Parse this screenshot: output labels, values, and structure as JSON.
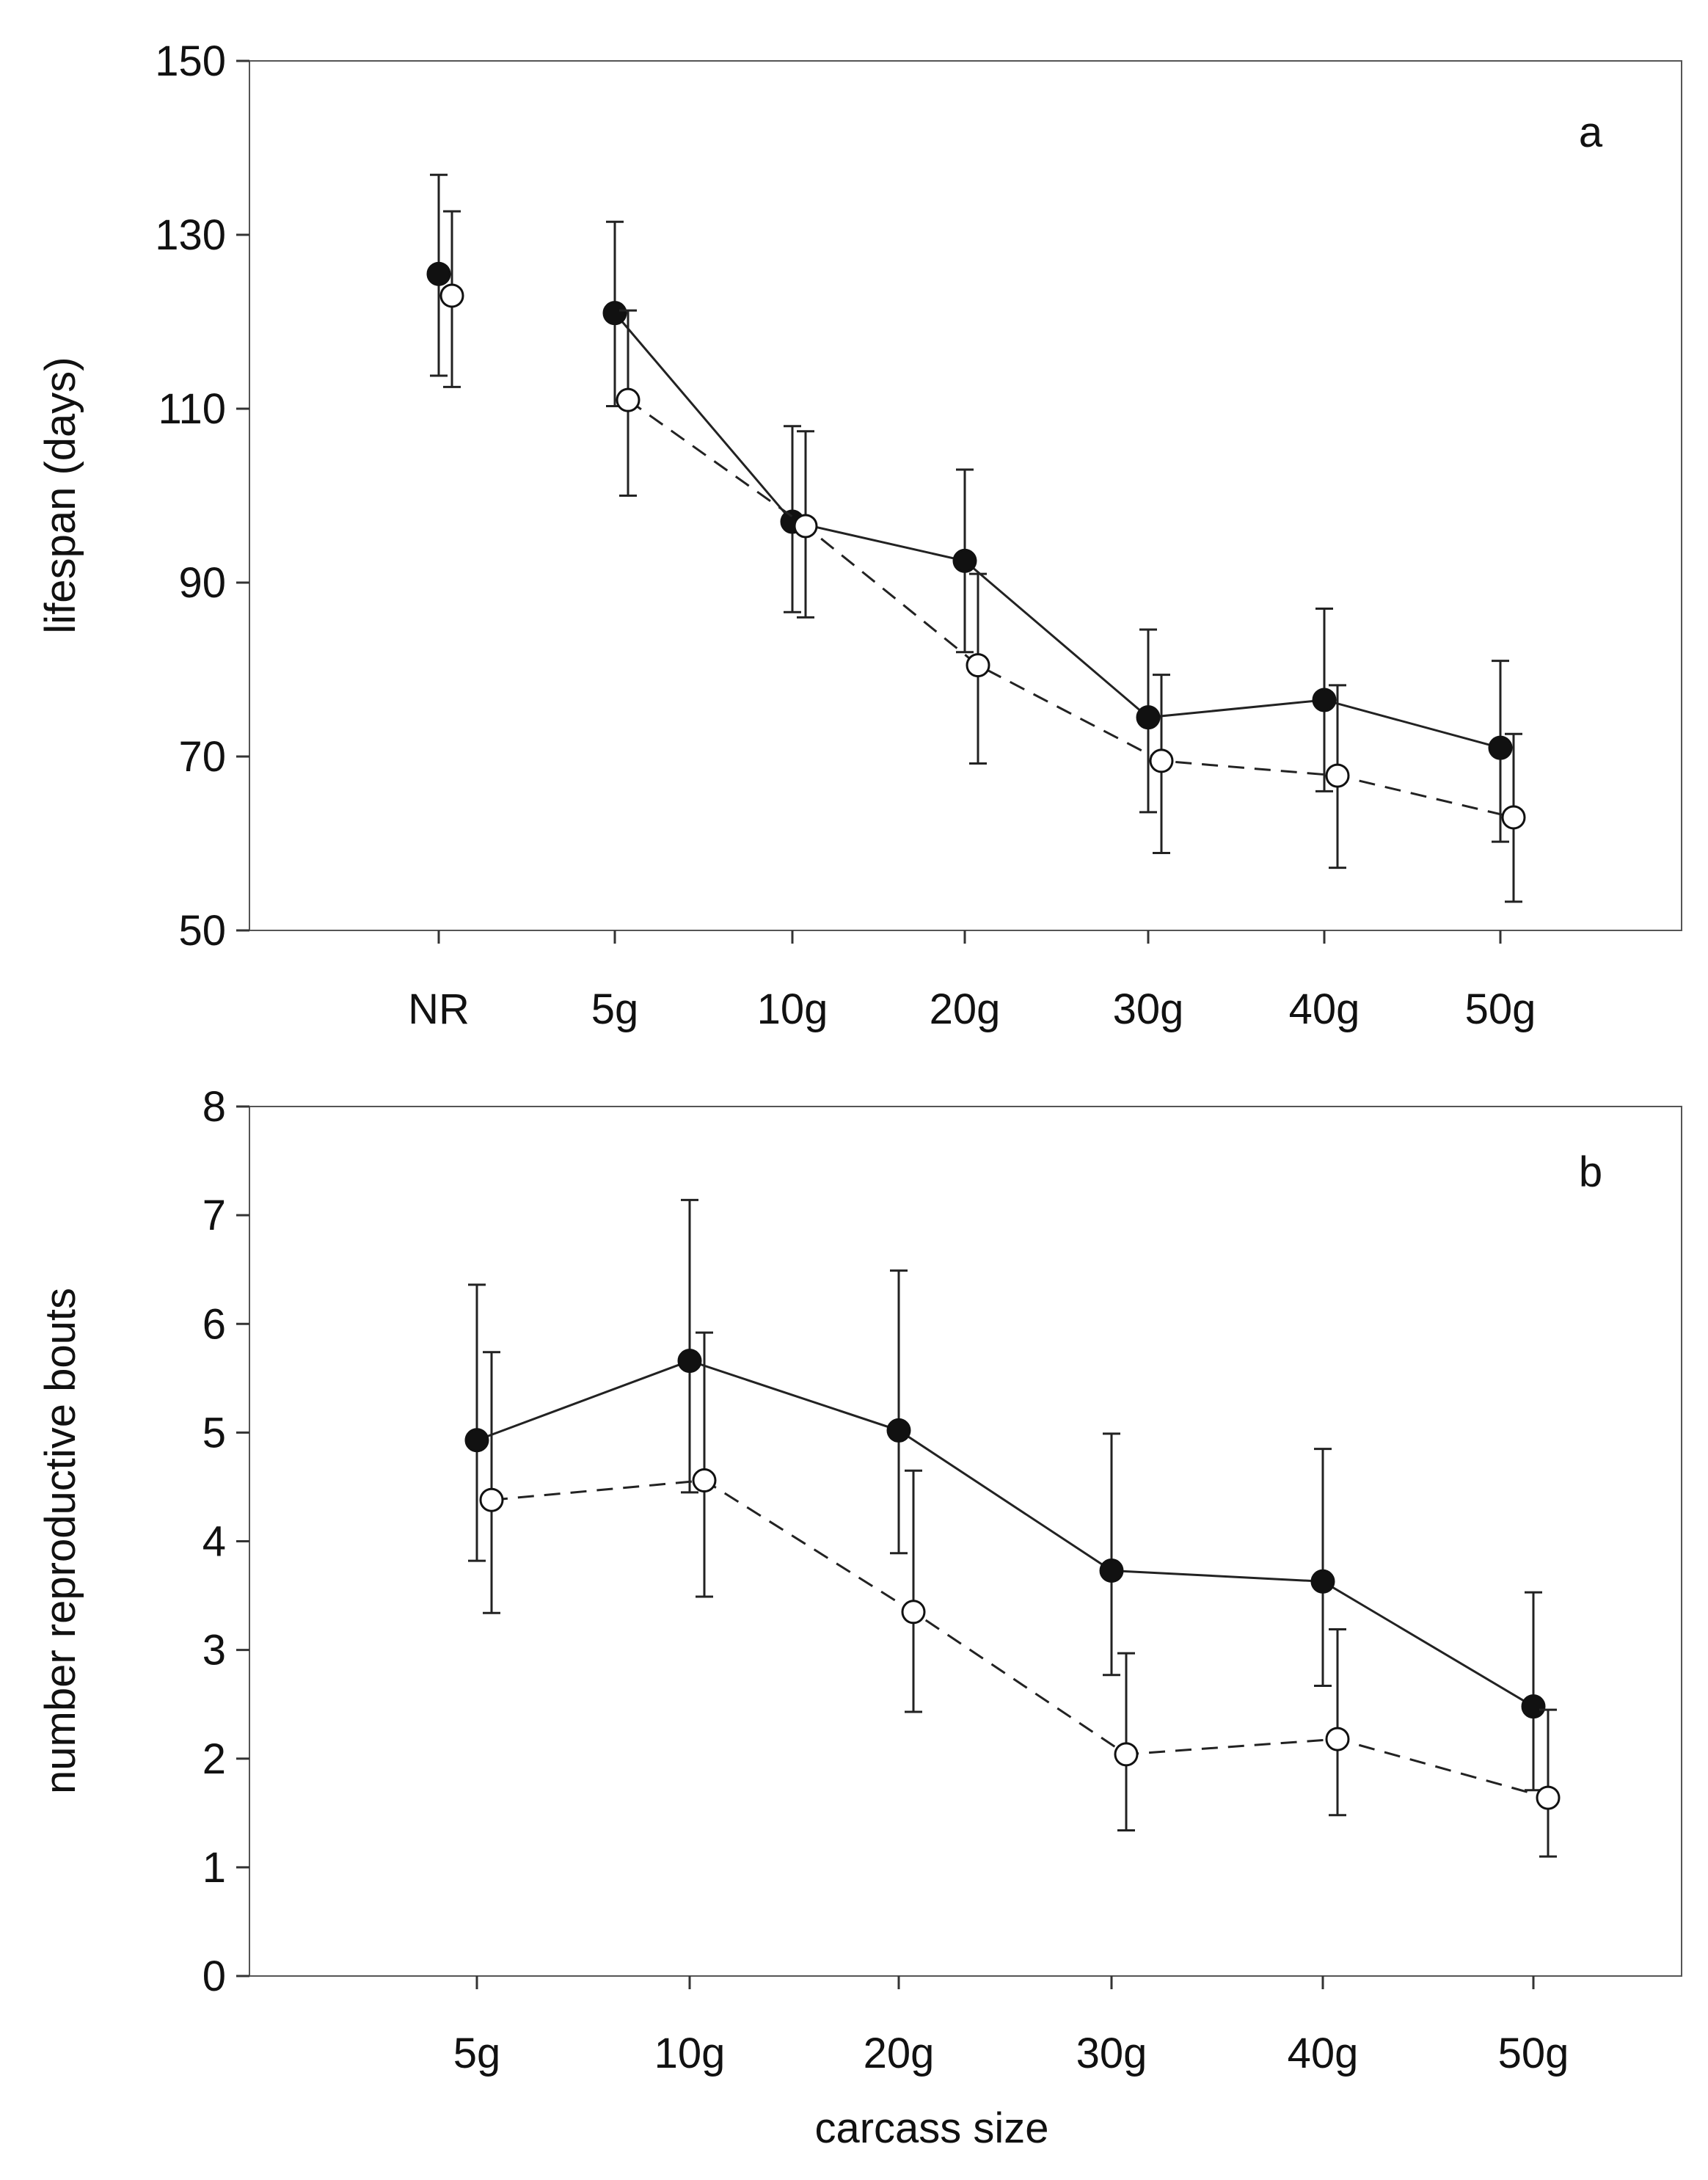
{
  "chart_data": [
    {
      "type": "line",
      "panel_label": "a",
      "xlabel": "",
      "ylabel": "lifespan (days)",
      "categories": [
        "NR",
        "5g",
        "10g",
        "20g",
        "30g",
        "40g",
        "50g"
      ],
      "ylim": [
        50,
        150
      ],
      "yticks": [
        50,
        70,
        90,
        110,
        130,
        150
      ],
      "series": [
        {
          "name": "filled",
          "marker": "filled-circle",
          "line": "solid",
          "values": [
            125.5,
            121,
            97,
            92.5,
            74.5,
            76.5,
            71
          ],
          "err_low": [
            113.8,
            110.3,
            86.6,
            82,
            63.6,
            66,
            60.2
          ],
          "err_high": [
            136.9,
            131.5,
            108,
            103,
            84.6,
            87,
            81
          ],
          "connect_from_index": 1
        },
        {
          "name": "open",
          "marker": "open-circle",
          "line": "dashed",
          "values": [
            123,
            111,
            96.5,
            80.5,
            69.5,
            67.8,
            63
          ],
          "err_low": [
            112.5,
            100,
            86,
            69.2,
            58.9,
            57.2,
            53.3
          ],
          "err_high": [
            132.7,
            121.3,
            107.4,
            91,
            79.4,
            78.2,
            72.6
          ],
          "connect_from_index": 1
        }
      ]
    },
    {
      "type": "line",
      "panel_label": "b",
      "xlabel": "carcass size",
      "ylabel": "number reproductive bouts",
      "categories": [
        "5g",
        "10g",
        "20g",
        "30g",
        "40g",
        "50g"
      ],
      "ylim": [
        0,
        8
      ],
      "yticks": [
        0,
        1,
        2,
        3,
        4,
        5,
        6,
        7,
        8
      ],
      "series": [
        {
          "name": "filled",
          "marker": "filled-circle",
          "line": "solid",
          "values": [
            4.93,
            5.66,
            5.02,
            3.73,
            3.63,
            2.48
          ],
          "err_low": [
            3.82,
            4.45,
            3.89,
            2.77,
            2.67,
            1.71
          ],
          "err_high": [
            6.36,
            7.14,
            6.49,
            4.99,
            4.85,
            3.53
          ],
          "connect_from_index": 0
        },
        {
          "name": "open",
          "marker": "open-circle",
          "line": "dashed",
          "values": [
            4.38,
            4.56,
            3.35,
            2.04,
            2.18,
            1.64
          ],
          "err_low": [
            3.34,
            3.49,
            2.43,
            1.34,
            1.48,
            1.1
          ],
          "err_high": [
            5.74,
            5.92,
            4.65,
            2.97,
            3.19,
            2.45
          ],
          "connect_from_index": 0
        }
      ]
    }
  ]
}
